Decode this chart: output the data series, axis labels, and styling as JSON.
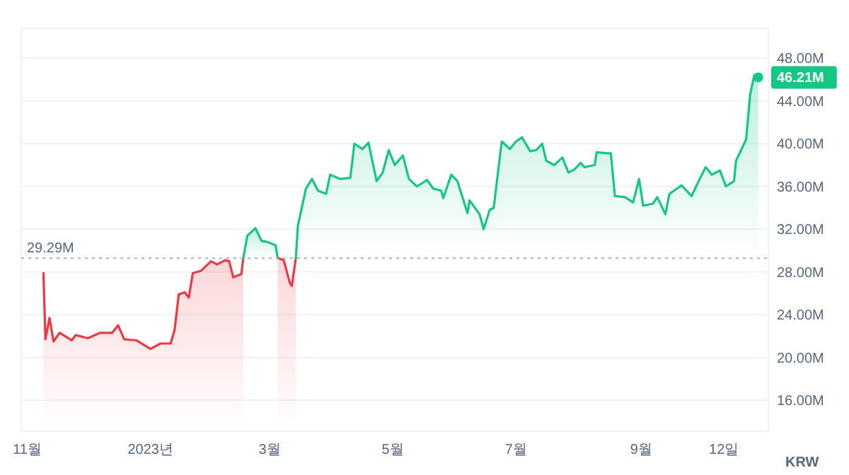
{
  "chart_data": {
    "type": "area",
    "ylabel": "KRW",
    "xlim": [
      "2022-10-29",
      "2023-11-03"
    ],
    "ylim": [
      13.1,
      50.8
    ],
    "xticks": [
      {
        "value": "2022-11-01",
        "label": "11월"
      },
      {
        "value": "2023-01-01",
        "label": "2023년"
      },
      {
        "value": "2023-03-01",
        "label": "3월"
      },
      {
        "value": "2023-05-01",
        "label": "5월"
      },
      {
        "value": "2023-07-01",
        "label": "7월"
      },
      {
        "value": "2023-09-01",
        "label": "9월"
      },
      {
        "value": "2023-10-12",
        "label": "12일"
      }
    ],
    "yticks": [
      {
        "value": 16,
        "label": "16.00M"
      },
      {
        "value": 20,
        "label": "20.00M"
      },
      {
        "value": 24,
        "label": "24.00M"
      },
      {
        "value": 28,
        "label": "28.00M"
      },
      {
        "value": 32,
        "label": "32.00M"
      },
      {
        "value": 36,
        "label": "36.00M"
      },
      {
        "value": 40,
        "label": "40.00M"
      },
      {
        "value": 44,
        "label": "44.00M"
      },
      {
        "value": 48,
        "label": "48.00M"
      }
    ],
    "grid": "y",
    "ref_lines": [
      {
        "axis": "y",
        "value": 29.29,
        "label": "29.29M",
        "color": "#a6b0c3",
        "line_style": "dotted"
      }
    ],
    "annotations": [
      {
        "text": "46.21M",
        "x": "2023-10-29",
        "y": 46.21
      }
    ],
    "series": [
      {
        "color": "#ea3943",
        "x": [
          "2022-11-09",
          "2022-11-10",
          "2022-11-12",
          "2022-11-14",
          "2022-11-17",
          "2022-11-23",
          "2022-11-25",
          "2022-12-01",
          "2022-12-07",
          "2022-12-13",
          "2022-12-16",
          "2022-12-19",
          "2022-12-25",
          "2023-01-01",
          "2023-01-06",
          "2023-01-11",
          "2023-01-13",
          "2023-01-15",
          "2023-01-18",
          "2023-01-20",
          "2023-01-22",
          "2023-01-26",
          "2023-01-31",
          "2023-02-03",
          "2023-02-07",
          "2023-02-09",
          "2023-02-11",
          "2023-02-15",
          "2023-02-16"
        ],
        "values": [
          27.9,
          21.7,
          23.7,
          21.5,
          22.3,
          21.6,
          22.1,
          21.8,
          22.3,
          22.3,
          23.0,
          21.7,
          21.6,
          20.8,
          21.3,
          21.3,
          22.6,
          25.9,
          26.1,
          25.6,
          27.9,
          28.1,
          29.0,
          28.7,
          29.1,
          29.0,
          27.5,
          27.8,
          29.3
        ]
      },
      {
        "color": "#16c784",
        "x": [
          "2023-02-16",
          "2023-02-18",
          "2023-02-22",
          "2023-02-25",
          "2023-02-28",
          "2023-03-04",
          "2023-03-05"
        ],
        "values": [
          29.3,
          31.4,
          32.1,
          30.9,
          30.8,
          30.5,
          29.3
        ]
      },
      {
        "color": "#ea3943",
        "x": [
          "2023-03-05",
          "2023-03-08",
          "2023-03-11",
          "2023-03-12",
          "2023-03-14"
        ],
        "values": [
          29.3,
          29.1,
          27.0,
          26.7,
          29.3
        ]
      },
      {
        "color": "#16c784",
        "x": [
          "2023-03-14",
          "2023-03-15",
          "2023-03-19",
          "2023-03-22",
          "2023-03-25",
          "2023-03-29",
          "2023-03-31",
          "2023-04-05",
          "2023-04-10",
          "2023-04-12",
          "2023-04-16",
          "2023-04-19",
          "2023-04-23",
          "2023-04-26",
          "2023-04-29",
          "2023-05-02",
          "2023-05-06",
          "2023-05-09",
          "2023-05-13",
          "2023-05-18",
          "2023-05-21",
          "2023-05-25",
          "2023-05-26",
          "2023-05-30",
          "2023-06-02",
          "2023-06-04",
          "2023-06-07",
          "2023-06-08",
          "2023-06-13",
          "2023-06-15",
          "2023-06-18",
          "2023-06-20",
          "2023-06-23",
          "2023-06-24",
          "2023-06-28",
          "2023-07-01",
          "2023-07-04",
          "2023-07-08",
          "2023-07-11",
          "2023-07-14",
          "2023-07-16",
          "2023-07-20",
          "2023-07-24",
          "2023-07-27",
          "2023-07-30",
          "2023-08-02",
          "2023-08-04",
          "2023-08-09",
          "2023-08-10",
          "2023-08-15",
          "2023-08-17",
          "2023-08-19",
          "2023-08-24",
          "2023-08-28",
          "2023-08-31",
          "2023-09-02",
          "2023-09-07",
          "2023-09-09",
          "2023-09-13",
          "2023-09-15",
          "2023-09-21",
          "2023-09-26",
          "2023-09-30",
          "2023-10-03",
          "2023-10-06",
          "2023-10-10",
          "2023-10-13",
          "2023-10-17",
          "2023-10-18",
          "2023-10-23",
          "2023-10-25",
          "2023-10-27",
          "2023-10-29"
        ],
        "values": [
          29.3,
          32.3,
          35.8,
          36.7,
          35.6,
          35.3,
          37.1,
          36.7,
          36.8,
          40.0,
          39.5,
          40.1,
          36.5,
          37.3,
          39.4,
          38.0,
          38.9,
          36.7,
          36.0,
          36.6,
          35.8,
          35.6,
          34.9,
          37.1,
          36.5,
          35.3,
          33.5,
          34.7,
          33.4,
          32.0,
          33.8,
          34.0,
          38.7,
          40.2,
          39.5,
          40.2,
          40.6,
          39.3,
          39.4,
          40.0,
          38.4,
          38.0,
          38.7,
          37.3,
          37.6,
          38.2,
          37.8,
          38.0,
          39.2,
          39.1,
          39.1,
          35.1,
          35.0,
          34.5,
          36.7,
          34.2,
          34.4,
          35.0,
          33.4,
          35.3,
          36.1,
          35.1,
          36.7,
          37.8,
          37.1,
          37.5,
          36.0,
          36.5,
          38.4,
          40.4,
          44.6,
          46.4,
          46.2
        ]
      }
    ]
  }
}
